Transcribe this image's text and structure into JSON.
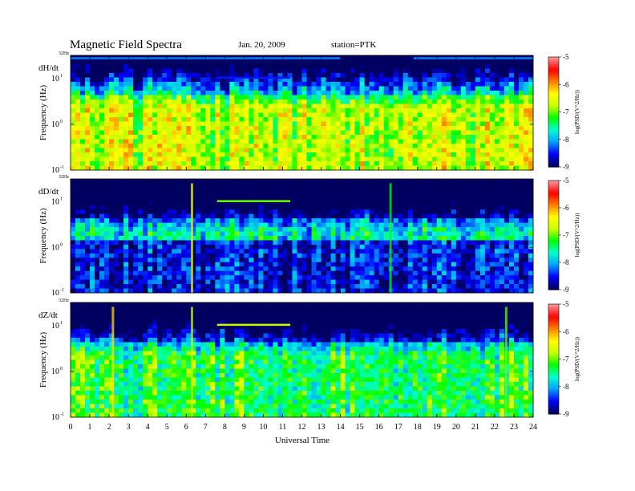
{
  "chart_data": {
    "type": "heatmap",
    "title": "Magnetic Field Spectra",
    "date": "Jan. 20, 2009",
    "station": "station=PTK",
    "xlabel": "Universal Time",
    "x_ticks": [
      "0",
      "1",
      "2",
      "3",
      "4",
      "5",
      "6",
      "7",
      "8",
      "9",
      "10",
      "11",
      "12",
      "13",
      "14",
      "15",
      "16",
      "17",
      "18",
      "19",
      "20",
      "21",
      "22",
      "23",
      "24"
    ],
    "xlim": [
      0,
      24
    ],
    "colorbar": {
      "label": "log(PSD/(V^2/Hz))",
      "range": [
        -9,
        -5
      ],
      "ticks": [
        "-5",
        "-6",
        "-7",
        "-8",
        "-9"
      ],
      "colormap": [
        "#000060",
        "#0000ff",
        "#00a0ff",
        "#00ffd0",
        "#00ff00",
        "#c8ff00",
        "#ffff00",
        "#ff8000",
        "#ff0000",
        "#ff9090"
      ]
    },
    "panels": [
      {
        "name": "dH/dt",
        "ylabel": "Frequency (Hz)",
        "top_label": "32Hz",
        "y_ticks": [
          {
            "base": "10",
            "exp": "1"
          },
          {
            "base": "10",
            "exp": "0"
          },
          {
            "base": "10",
            "exp": "-1"
          }
        ],
        "ylim": [
          0.1,
          32
        ],
        "y_scale": "log",
        "baseline": -7.0,
        "features": [
          {
            "type": "tone",
            "freq": 28,
            "t0": 0,
            "t1": 14,
            "level": -8.2
          },
          {
            "type": "tone",
            "freq": 28,
            "t0": 17.8,
            "t1": 24,
            "level": -8.2
          },
          {
            "type": "tone",
            "freq": 10.5,
            "t0": 7.6,
            "t1": 11.4,
            "level": -8.5
          }
        ]
      },
      {
        "name": "dD/dt",
        "ylabel": "Frequency (Hz)",
        "top_label": "32Hz",
        "y_ticks": [
          {
            "base": "10",
            "exp": "1"
          },
          {
            "base": "10",
            "exp": "0"
          },
          {
            "base": "10",
            "exp": "-1"
          }
        ],
        "ylim": [
          0.1,
          32
        ],
        "y_scale": "log",
        "baseline": -8.0,
        "features": [
          {
            "type": "tone",
            "freq": 10.5,
            "t0": 7.6,
            "t1": 11.4,
            "level": -7.0
          },
          {
            "type": "spike",
            "t": 6.3,
            "level": -6.5
          },
          {
            "type": "spike",
            "t": 16.6,
            "level": -7.2
          }
        ]
      },
      {
        "name": "dZ/dt",
        "ylabel": "Frequency (Hz)",
        "top_label": "32Hz",
        "y_ticks": [
          {
            "base": "10",
            "exp": "1"
          },
          {
            "base": "10",
            "exp": "0"
          },
          {
            "base": "10",
            "exp": "-1"
          }
        ],
        "ylim": [
          0.1,
          32
        ],
        "y_scale": "log",
        "baseline": -7.6,
        "features": [
          {
            "type": "tone",
            "freq": 10.5,
            "t0": 7.6,
            "t1": 11.4,
            "level": -6.8
          },
          {
            "type": "spike",
            "t": 2.2,
            "level": -6.2
          },
          {
            "type": "spike",
            "t": 6.3,
            "level": -6.8
          },
          {
            "type": "spike",
            "t": 22.6,
            "level": -7.0
          }
        ]
      }
    ]
  }
}
